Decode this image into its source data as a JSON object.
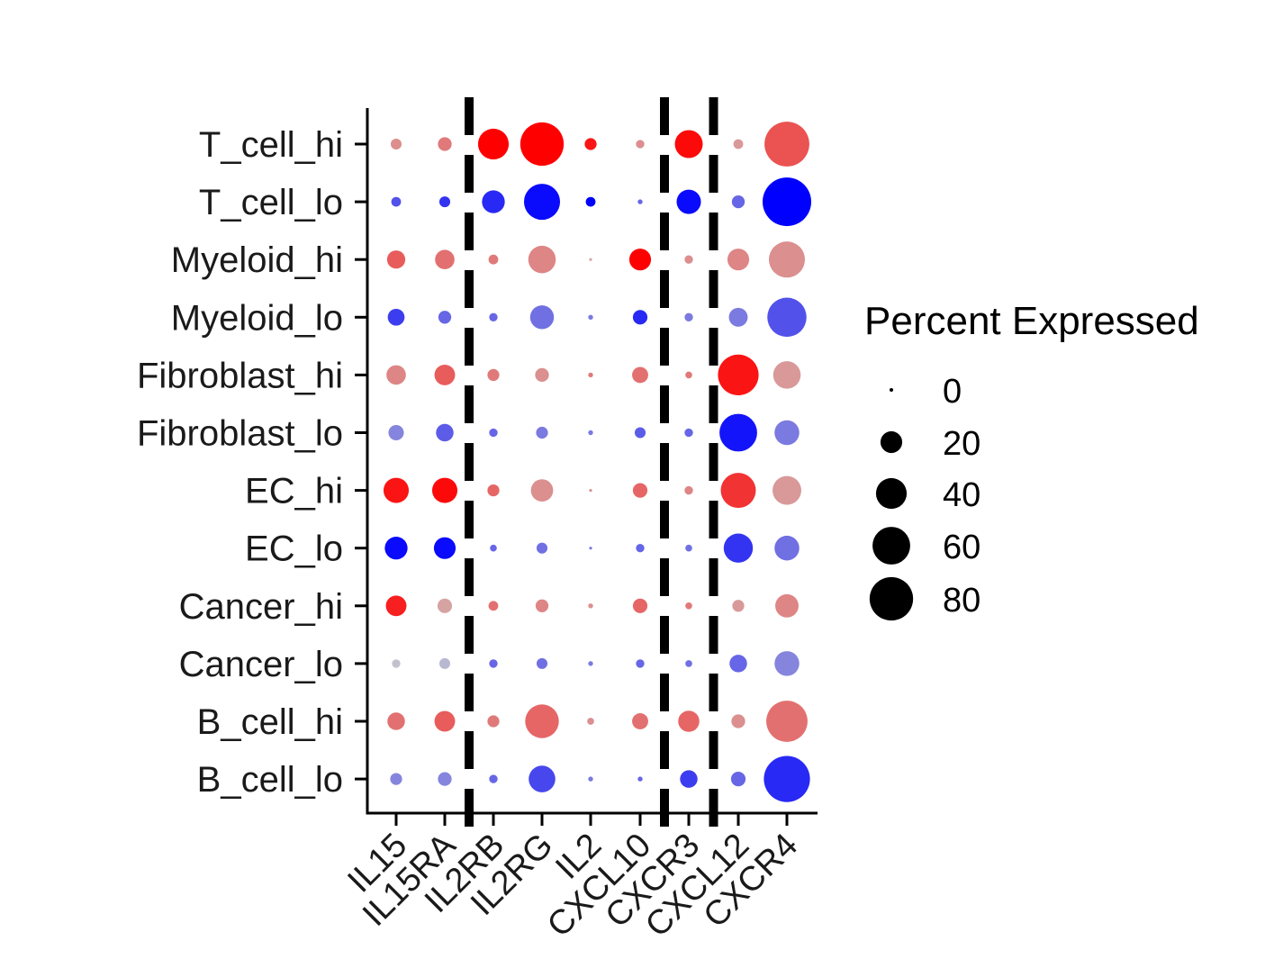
{
  "chart_data": {
    "type": "dot",
    "title": "",
    "xlabel": "",
    "ylabel": "",
    "x_categories": [
      "IL15",
      "IL15RA",
      "IL2RB",
      "IL2RG",
      "IL2",
      "CXCL10",
      "CXCR3",
      "CXCL12",
      "CXCR4"
    ],
    "y_categories": [
      "T_cell_hi",
      "T_cell_lo",
      "Myeloid_hi",
      "Myeloid_lo",
      "Fibroblast_hi",
      "Fibroblast_lo",
      "EC_hi",
      "EC_lo",
      "Cancer_hi",
      "Cancer_lo",
      "B_cell_hi",
      "B_cell_lo"
    ],
    "separators_after_x_index": [
      1,
      5,
      6
    ],
    "colors": {
      "high": "#ff0000",
      "mid": "#cccccc",
      "low": "#0000ff"
    },
    "legend": {
      "title": "Percent Expressed",
      "values": [
        0,
        20,
        40,
        60,
        80
      ],
      "position": "right"
    },
    "percent_expressed": [
      [
        5,
        8,
        40,
        80,
        6,
        3,
        33,
        4,
        85
      ],
      [
        4,
        5,
        22,
        55,
        4,
        1,
        25,
        7,
        100
      ],
      [
        14,
        16,
        4,
        32,
        0,
        20,
        3,
        20,
        55
      ],
      [
        12,
        7,
        3,
        24,
        1,
        9,
        3,
        15,
        65
      ],
      [
        16,
        18,
        6,
        8,
        1,
        11,
        2,
        70,
        32
      ],
      [
        10,
        13,
        3,
        6,
        1,
        5,
        3,
        60,
        26
      ],
      [
        27,
        27,
        6,
        21,
        0,
        9,
        3,
        52,
        35
      ],
      [
        22,
        20,
        2,
        5,
        0,
        3,
        2,
        36,
        26
      ],
      [
        18,
        9,
        4,
        7,
        1,
        9,
        2,
        6,
        23
      ],
      [
        3,
        5,
        3,
        5,
        1,
        3,
        2,
        13,
        26
      ],
      [
        13,
        18,
        6,
        48,
        2,
        11,
        19,
        8,
        72
      ],
      [
        6,
        8,
        3,
        30,
        1,
        1,
        13,
        9,
        90
      ]
    ],
    "avg_expression_scaled": [
      [
        0.3,
        0.4,
        1.0,
        1.0,
        0.9,
        0.3,
        0.95,
        0.25,
        0.6
      ],
      [
        -0.6,
        -0.75,
        -0.8,
        -0.95,
        -1.0,
        -0.5,
        -0.95,
        -0.5,
        -1.0
      ],
      [
        0.55,
        0.45,
        0.4,
        0.35,
        0.2,
        1.0,
        0.3,
        0.35,
        0.3
      ],
      [
        -0.7,
        -0.5,
        -0.5,
        -0.45,
        -0.4,
        -0.8,
        -0.4,
        -0.4,
        -0.6
      ],
      [
        0.35,
        0.55,
        0.4,
        0.3,
        0.4,
        0.45,
        0.4,
        0.9,
        0.25
      ],
      [
        -0.35,
        -0.55,
        -0.5,
        -0.4,
        -0.4,
        -0.55,
        -0.5,
        -0.9,
        -0.4
      ],
      [
        0.9,
        0.95,
        0.5,
        0.3,
        0.3,
        0.5,
        0.35,
        0.75,
        0.25
      ],
      [
        -0.95,
        -0.95,
        -0.5,
        -0.45,
        -0.4,
        -0.5,
        -0.45,
        -0.75,
        -0.45
      ],
      [
        0.85,
        0.2,
        0.45,
        0.35,
        0.3,
        0.5,
        0.4,
        0.25,
        0.35
      ],
      [
        -0.05,
        -0.1,
        -0.5,
        -0.45,
        -0.4,
        -0.5,
        -0.45,
        -0.5,
        -0.35
      ],
      [
        0.45,
        0.55,
        0.4,
        0.5,
        0.3,
        0.45,
        0.5,
        0.3,
        0.45
      ],
      [
        -0.35,
        -0.35,
        -0.5,
        -0.65,
        -0.4,
        -0.5,
        -0.7,
        -0.5,
        -0.8
      ]
    ]
  }
}
